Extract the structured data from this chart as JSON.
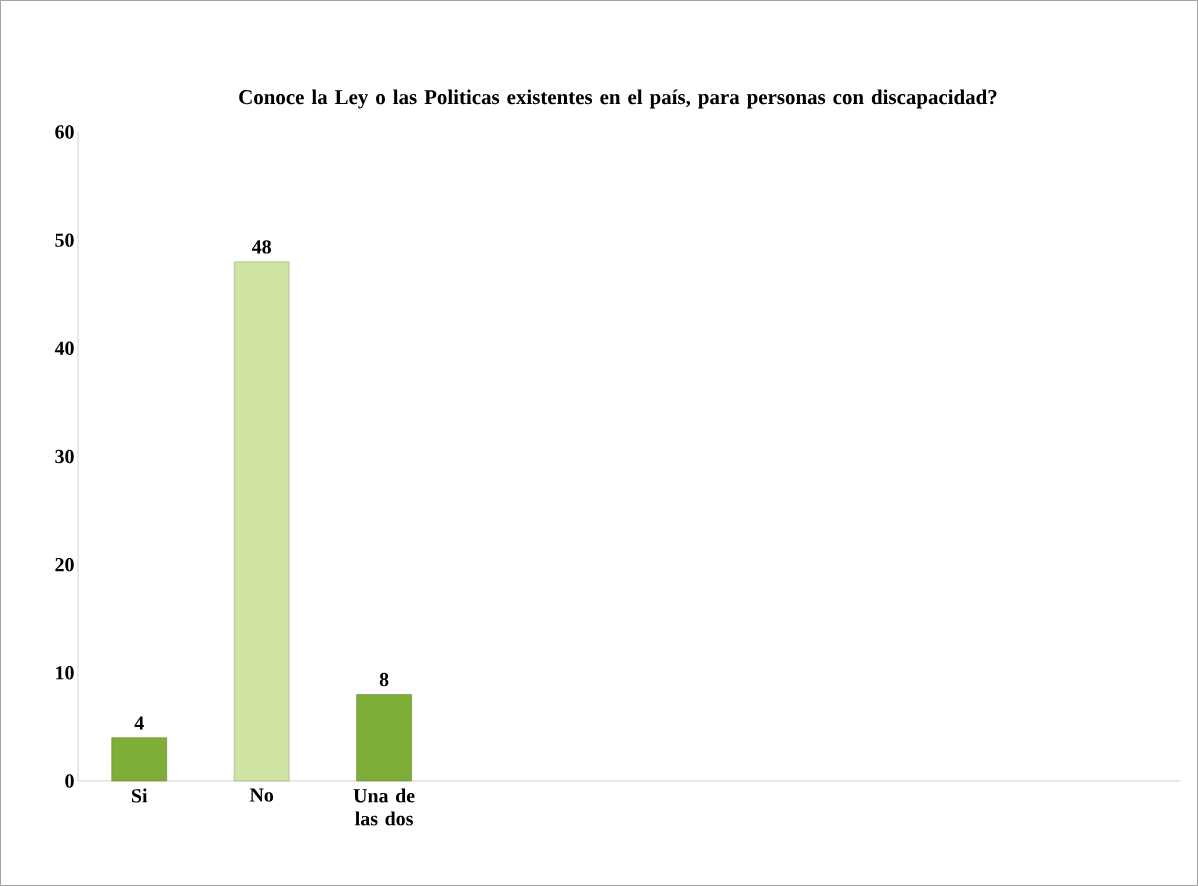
{
  "chart_data": {
    "type": "bar",
    "title": "Conoce la Ley o las Politicas existentes en el país, para personas con discapacidad?",
    "categories": [
      "Si",
      "No",
      "Una de las dos",
      null,
      null,
      null,
      null,
      null,
      null
    ],
    "values": [
      4,
      48,
      8,
      null,
      null,
      null,
      null,
      null,
      null
    ],
    "colors": [
      "#7fae38",
      "#cfe3a3",
      "#7fae38",
      "#7fae38",
      "#7fae38",
      "#7fae38",
      "#7fae38",
      "#7fae38",
      "#7fae38"
    ],
    "ylim": [
      0,
      60
    ],
    "yticks": [
      0,
      10,
      20,
      30,
      40,
      50,
      60
    ],
    "data_labels": true
  }
}
